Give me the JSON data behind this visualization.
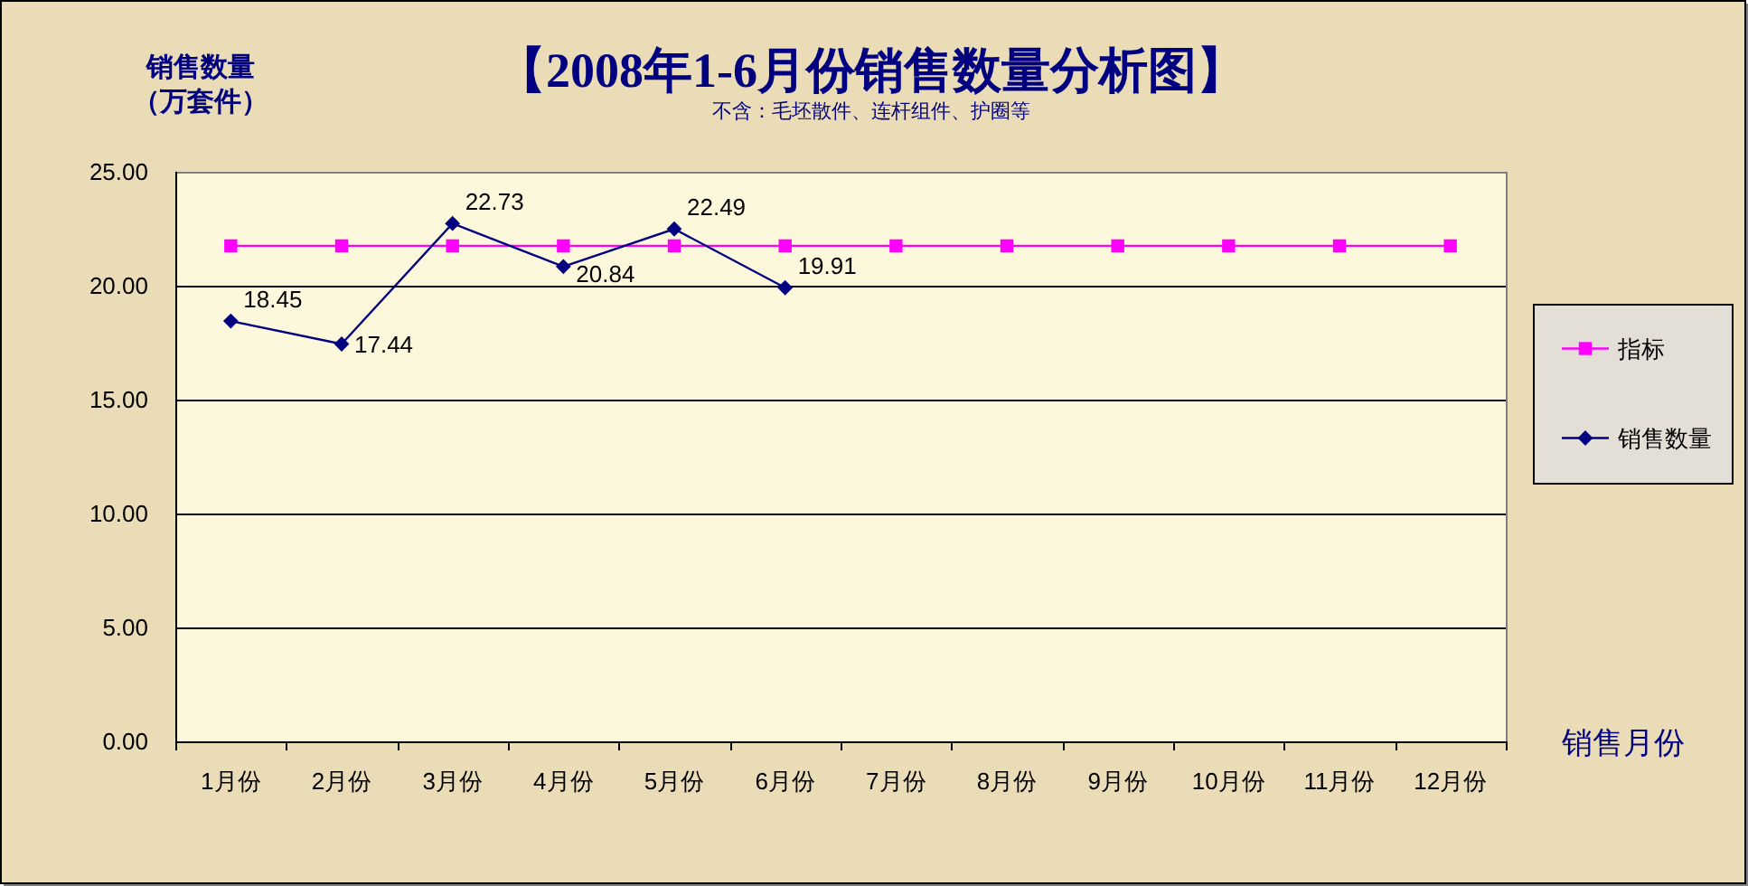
{
  "chart_data": {
    "type": "line",
    "title": "【2008年1-6月份销售数量分析图】",
    "subtitle": "不含：毛坯散件、连杆组件、护圈等",
    "ylabel": "销售数量（万套件）",
    "xlabel": "销售月份",
    "categories": [
      "1月份",
      "2月份",
      "3月份",
      "4月份",
      "5月份",
      "6月份",
      "7月份",
      "8月份",
      "9月份",
      "10月份",
      "11月份",
      "12月份"
    ],
    "series": [
      {
        "name": "指标",
        "color": "#ff00ff",
        "marker": "square",
        "values": [
          21.75,
          21.75,
          21.75,
          21.75,
          21.75,
          21.75,
          21.75,
          21.75,
          21.75,
          21.75,
          21.75,
          21.75
        ]
      },
      {
        "name": "销售数量",
        "color": "#000080",
        "marker": "diamond",
        "values": [
          18.45,
          17.44,
          22.73,
          20.84,
          22.49,
          19.91,
          null,
          null,
          null,
          null,
          null,
          null
        ],
        "value_labels": [
          "18.45",
          "17.44",
          "22.73",
          "20.84",
          "22.49",
          "19.91",
          null,
          null,
          null,
          null,
          null,
          null
        ]
      }
    ],
    "ylim": [
      0,
      25
    ],
    "yticks": [
      {
        "value": 0,
        "label": "0.00"
      },
      {
        "value": 5,
        "label": "5.00"
      },
      {
        "value": 10,
        "label": "10.00"
      },
      {
        "value": 15,
        "label": "15.00"
      },
      {
        "value": 20,
        "label": "20.00"
      },
      {
        "value": 25,
        "label": "25.00"
      }
    ],
    "grid": "y",
    "legend": "right"
  }
}
